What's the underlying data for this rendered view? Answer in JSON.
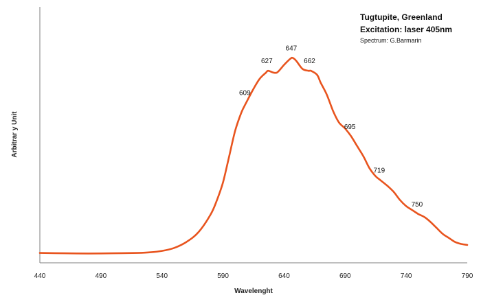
{
  "chart_data": {
    "type": "line",
    "title": "Tugtupite, Greenland",
    "subtitle": "Excitation: laser 405nm",
    "credit": "Spectrum: G.Barmarin",
    "xlabel": "Wavelenght",
    "ylabel": "Arbitrar y Unit",
    "xlim": [
      440,
      790
    ],
    "ylim": [
      0,
      1
    ],
    "x_ticks": [
      "440",
      "490",
      "540",
      "590",
      "640",
      "690",
      "740",
      "790"
    ],
    "grid": false,
    "line_color": "#E8541E",
    "series": [
      {
        "x": [
          440,
          460,
          480,
          500,
          520,
          530,
          540,
          550,
          560,
          570,
          580,
          585,
          590,
          595,
          600,
          605,
          609,
          615,
          620,
          625,
          627,
          632,
          635,
          640,
          645,
          647,
          650,
          655,
          660,
          662,
          667,
          670,
          675,
          680,
          685,
          690,
          695,
          700,
          705,
          710,
          715,
          719,
          725,
          730,
          735,
          740,
          745,
          750,
          755,
          760,
          765,
          770,
          775,
          780,
          785,
          790
        ],
        "y": [
          0.005,
          0.003,
          0.002,
          0.003,
          0.005,
          0.008,
          0.015,
          0.03,
          0.06,
          0.11,
          0.2,
          0.27,
          0.36,
          0.49,
          0.62,
          0.71,
          0.76,
          0.83,
          0.88,
          0.91,
          0.92,
          0.91,
          0.915,
          0.95,
          0.98,
          0.985,
          0.97,
          0.93,
          0.92,
          0.92,
          0.9,
          0.86,
          0.8,
          0.72,
          0.66,
          0.63,
          0.59,
          0.54,
          0.49,
          0.43,
          0.39,
          0.37,
          0.34,
          0.31,
          0.27,
          0.24,
          0.22,
          0.2,
          0.185,
          0.16,
          0.13,
          0.1,
          0.08,
          0.06,
          0.05,
          0.045
        ]
      }
    ],
    "annotations": [
      {
        "label": "609",
        "x": 609,
        "y": 0.76
      },
      {
        "label": "627",
        "x": 627,
        "y": 0.92
      },
      {
        "label": "647",
        "x": 647,
        "y": 0.985
      },
      {
        "label": "662",
        "x": 662,
        "y": 0.92
      },
      {
        "label": "695",
        "x": 695,
        "y": 0.59
      },
      {
        "label": "719",
        "x": 719,
        "y": 0.37
      },
      {
        "label": "750",
        "x": 750,
        "y": 0.2
      }
    ]
  }
}
